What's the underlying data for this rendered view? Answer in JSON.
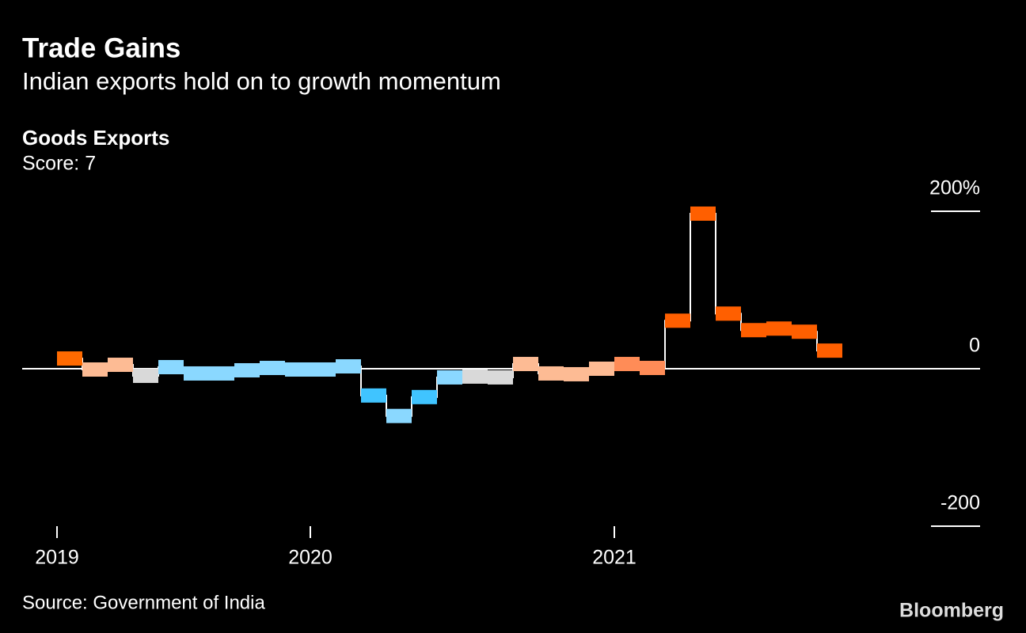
{
  "chart_data": {
    "type": "step",
    "title": "Trade Gains",
    "subtitle": "Indian exports hold on to growth momentum",
    "panel_title": "Goods Exports",
    "score": "Score: 7",
    "source": "Source: Government of India",
    "brand": "Bloomberg",
    "categories": [
      null,
      null,
      null,
      null,
      null,
      null,
      null,
      null,
      null,
      null,
      null,
      null,
      null,
      null,
      null,
      null,
      null,
      null,
      null,
      null,
      null,
      null,
      null,
      null,
      null,
      null,
      null,
      null,
      null,
      null,
      null
    ],
    "values": [
      13,
      -1,
      5,
      -9,
      2,
      -6,
      -6,
      -2,
      1,
      -1,
      -1,
      3,
      -34,
      -60,
      -36,
      -11,
      -10,
      -11,
      6,
      -6,
      -7,
      0,
      6,
      1,
      61,
      197,
      70,
      49,
      51,
      47,
      23
    ],
    "colors": [
      "#ff6a00",
      "#fdbb94",
      "#fdbb94",
      "#d9d9d9",
      "#8ad8ff",
      "#8ad8ff",
      "#8ad8ff",
      "#8ad8ff",
      "#8ad8ff",
      "#8ad8ff",
      "#8ad8ff",
      "#8ad8ff",
      "#40c4ff",
      "#8ad8ff",
      "#40c4ff",
      "#8ad8ff",
      "#d9d9d9",
      "#d9d9d9",
      "#fdbb94",
      "#fdbb94",
      "#fdbb94",
      "#fdbb94",
      "#ff8c57",
      "#ff8c57",
      "#ff5f00",
      "#ff5f00",
      "#ff5f00",
      "#ff5f00",
      "#ff5f00",
      "#ff5f00",
      "#ff5f00"
    ],
    "line_color": "#ffffff",
    "ylim": [
      -200,
      200
    ],
    "yticks": [
      {
        "value": 200,
        "label": "200%"
      },
      0,
      -200
    ],
    "xticks": [
      {
        "value": 0,
        "label": "2019"
      },
      {
        "value": 10,
        "label": "2020"
      },
      {
        "value": 22,
        "label": "2021"
      }
    ]
  }
}
